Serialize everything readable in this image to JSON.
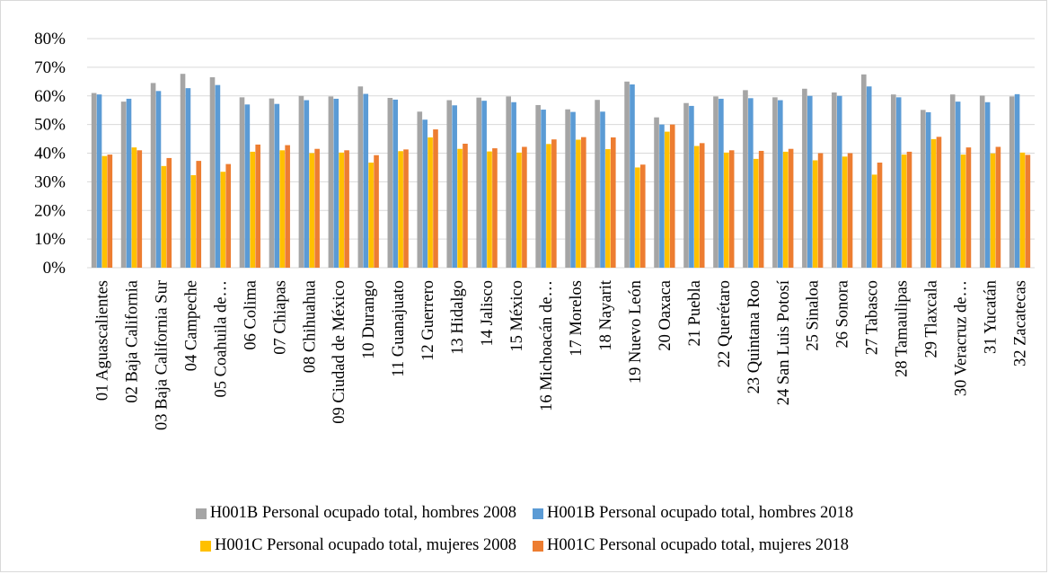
{
  "chart_data": {
    "type": "bar",
    "ylim": [
      0,
      0.8
    ],
    "yticks": [
      "0%",
      "10%",
      "20%",
      "30%",
      "40%",
      "50%",
      "60%",
      "70%",
      "80%"
    ],
    "grid": true,
    "legend_position": "bottom",
    "categories": [
      "01 Aguascalientes",
      "02 Baja California",
      "03 Baja California Sur",
      "04 Campeche",
      "05 Coahuila de…",
      "06 Colima",
      "07 Chiapas",
      "08 Chihuahua",
      "09 Ciudad de México",
      "10 Durango",
      "11 Guanajuato",
      "12 Guerrero",
      "13 Hidalgo",
      "14 Jalisco",
      "15 México",
      "16 Michoacán de…",
      "17 Morelos",
      "18 Nayarit",
      "19 Nuevo León",
      "20 Oaxaca",
      "21 Puebla",
      "22 Querétaro",
      "23 Quintana Roo",
      "24 San Luis Potosí",
      "25 Sinaloa",
      "26 Sonora",
      "27 Tabasco",
      "28 Tamaulipas",
      "29 Tlaxcala",
      "30 Veracruz de…",
      "31 Yucatán",
      "32 Zacatecas"
    ],
    "series": [
      {
        "name": "H001B Personal ocupado total, hombres 2008",
        "color": "#a5a5a5",
        "values": [
          0.61,
          0.58,
          0.645,
          0.677,
          0.665,
          0.595,
          0.591,
          0.6,
          0.598,
          0.633,
          0.593,
          0.545,
          0.585,
          0.594,
          0.598,
          0.568,
          0.553,
          0.586,
          0.65,
          0.525,
          0.575,
          0.598,
          0.62,
          0.595,
          0.625,
          0.612,
          0.675,
          0.605,
          0.551,
          0.605,
          0.601,
          0.598
        ]
      },
      {
        "name": "H001B Personal ocupado total, hombres 2018",
        "color": "#5b9bd5",
        "values": [
          0.605,
          0.59,
          0.617,
          0.627,
          0.638,
          0.57,
          0.572,
          0.585,
          0.59,
          0.607,
          0.587,
          0.517,
          0.567,
          0.583,
          0.578,
          0.552,
          0.544,
          0.545,
          0.64,
          0.5,
          0.565,
          0.59,
          0.592,
          0.585,
          0.6,
          0.6,
          0.633,
          0.595,
          0.543,
          0.58,
          0.578,
          0.606
        ]
      },
      {
        "name": "H001C Personal ocupado total, mujeres 2008",
        "color": "#ffc000",
        "values": [
          0.39,
          0.42,
          0.355,
          0.323,
          0.335,
          0.405,
          0.41,
          0.4,
          0.402,
          0.367,
          0.407,
          0.455,
          0.415,
          0.406,
          0.402,
          0.432,
          0.447,
          0.414,
          0.35,
          0.475,
          0.425,
          0.402,
          0.38,
          0.405,
          0.375,
          0.388,
          0.325,
          0.395,
          0.449,
          0.395,
          0.399,
          0.402
        ]
      },
      {
        "name": "H001C Personal ocupado total, mujeres 2018",
        "color": "#ed7d31",
        "values": [
          0.395,
          0.41,
          0.383,
          0.373,
          0.362,
          0.43,
          0.428,
          0.415,
          0.41,
          0.393,
          0.413,
          0.483,
          0.433,
          0.417,
          0.422,
          0.448,
          0.456,
          0.455,
          0.36,
          0.5,
          0.435,
          0.41,
          0.408,
          0.415,
          0.4,
          0.4,
          0.367,
          0.405,
          0.457,
          0.42,
          0.422,
          0.394
        ]
      }
    ]
  }
}
